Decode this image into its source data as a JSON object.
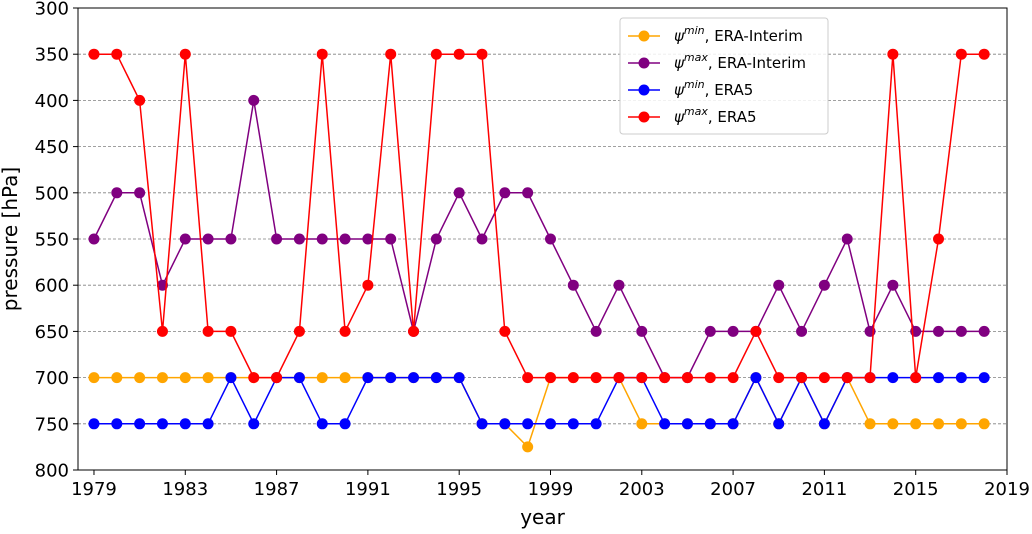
{
  "chart_data": {
    "type": "line",
    "title": "",
    "xlabel": "year",
    "ylabel": "pressure [hPa]",
    "xlim": [
      1978.3,
      2019
    ],
    "ylim": [
      800,
      300
    ],
    "y_inverted": true,
    "x_ticks": [
      1979,
      1983,
      1987,
      1991,
      1995,
      1999,
      2003,
      2007,
      2011,
      2015,
      2019
    ],
    "y_ticks": [
      300,
      350,
      400,
      450,
      500,
      550,
      600,
      650,
      700,
      750,
      800
    ],
    "grid": "horizontal dashed",
    "legend_position": "top-right",
    "x": [
      1979,
      1980,
      1981,
      1982,
      1983,
      1984,
      1985,
      1986,
      1987,
      1988,
      1989,
      1990,
      1991,
      1992,
      1993,
      1994,
      1995,
      1996,
      1997,
      1998,
      1999,
      2000,
      2001,
      2002,
      2003,
      2004,
      2005,
      2006,
      2007,
      2008,
      2009,
      2010,
      2011,
      2012,
      2013,
      2014,
      2015,
      2016,
      2017,
      2018
    ],
    "series": [
      {
        "name_symbol": "ψ",
        "name_sup": "min",
        "name_suffix": ", ERA-Interim",
        "color": "#ffa500",
        "values": [
          700,
          700,
          700,
          700,
          700,
          700,
          700,
          700,
          700,
          700,
          700,
          700,
          700,
          700,
          700,
          700,
          700,
          750,
          750,
          775,
          700,
          700,
          700,
          700,
          750,
          750,
          750,
          750,
          750,
          700,
          750,
          700,
          750,
          700,
          750,
          750,
          750,
          750,
          750,
          750
        ]
      },
      {
        "name_symbol": "ψ",
        "name_sup": "max",
        "name_suffix": ", ERA-Interim",
        "color": "#800080",
        "values": [
          550,
          500,
          500,
          600,
          550,
          550,
          550,
          400,
          550,
          550,
          550,
          550,
          550,
          550,
          650,
          550,
          500,
          550,
          500,
          500,
          550,
          600,
          650,
          600,
          650,
          700,
          700,
          650,
          650,
          650,
          600,
          650,
          600,
          550,
          650,
          600,
          650,
          650,
          650,
          650
        ]
      },
      {
        "name_symbol": "ψ",
        "name_sup": "min",
        "name_suffix": ", ERA5",
        "color": "#0000ff",
        "values": [
          750,
          750,
          750,
          750,
          750,
          750,
          700,
          750,
          700,
          700,
          750,
          750,
          700,
          700,
          700,
          700,
          700,
          750,
          750,
          750,
          750,
          750,
          750,
          700,
          700,
          750,
          750,
          750,
          750,
          700,
          750,
          700,
          750,
          700,
          700,
          700,
          700,
          700,
          700,
          700
        ]
      },
      {
        "name_symbol": "ψ",
        "name_sup": "max",
        "name_suffix": ", ERA5",
        "color": "#ff0000",
        "values": [
          350,
          350,
          400,
          650,
          350,
          650,
          650,
          700,
          700,
          650,
          350,
          650,
          600,
          350,
          650,
          350,
          350,
          350,
          650,
          700,
          700,
          700,
          700,
          700,
          700,
          700,
          700,
          700,
          700,
          650,
          700,
          700,
          700,
          700,
          700,
          350,
          700,
          550,
          350,
          350
        ]
      }
    ]
  }
}
